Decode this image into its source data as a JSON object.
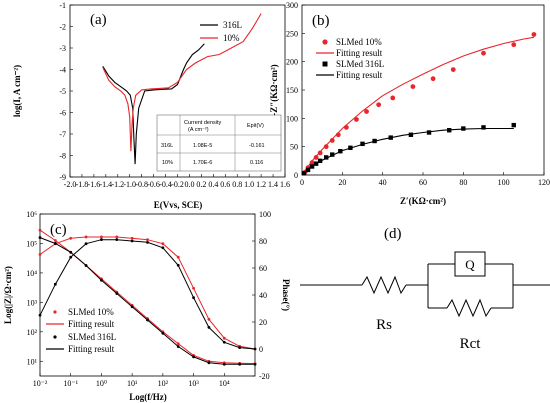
{
  "colors": {
    "sample_10": "#e8262b",
    "sample_316l": "#000000",
    "axis": "#000000"
  },
  "panels": {
    "a": {
      "label": "(a)"
    },
    "b": {
      "label": "(b)"
    },
    "c": {
      "label": "(c)"
    },
    "d": {
      "label": "(d)",
      "rs_label": "Rs",
      "rct_label": "Rct",
      "q_label": "Q"
    }
  },
  "chart_data": [
    {
      "id": "a",
      "type": "line",
      "xlabel": "E(Vvs, SCE)",
      "ylabel": "log(I, A cm⁻²)",
      "xlim": [
        -2.0,
        1.6
      ],
      "ylim": [
        -9,
        -1
      ],
      "xticks": [
        "-2.0",
        "-1.8",
        "-1.6",
        "-1.4",
        "-1.2",
        "-1.0",
        "-0.8",
        "-0.6",
        "-0.4",
        "-0.2",
        "0.0",
        "0.2",
        "0.4",
        "0.6",
        "0.8",
        "1.0",
        "1.2",
        "1.4",
        "1.6"
      ],
      "yticks": [
        "-9",
        "-8",
        "-7",
        "-6",
        "-5",
        "-4",
        "-3",
        "-2",
        "-1"
      ],
      "legend": [
        "316L",
        "10%"
      ],
      "series": [
        {
          "name": "316L",
          "x": [
            -1.45,
            -1.35,
            -1.25,
            -1.15,
            -1.05,
            -0.99,
            -0.95,
            -0.93,
            -0.91,
            -0.89,
            -0.85,
            -0.75,
            -0.6,
            -0.45,
            -0.3,
            -0.2,
            -0.1,
            -0.05,
            0.05,
            0.15,
            0.25
          ],
          "y": [
            -3.85,
            -4.3,
            -4.6,
            -4.8,
            -5.0,
            -5.2,
            -5.8,
            -7.2,
            -8.4,
            -7.0,
            -5.8,
            -5.0,
            -4.95,
            -4.92,
            -4.9,
            -4.7,
            -4.0,
            -3.7,
            -3.3,
            -3.1,
            -2.8
          ]
        },
        {
          "name": "10%",
          "x": [
            -1.45,
            -1.35,
            -1.25,
            -1.15,
            -1.08,
            -1.03,
            -1.0,
            -0.98,
            -0.96,
            -0.94,
            -0.9,
            -0.8,
            -0.65,
            -0.5,
            -0.35,
            -0.2,
            -0.05,
            0.1,
            0.3,
            0.5,
            0.7,
            0.9,
            1.05,
            1.2
          ],
          "y": [
            -3.9,
            -4.5,
            -4.8,
            -5.0,
            -5.2,
            -5.6,
            -6.2,
            -7.8,
            -6.5,
            -5.8,
            -5.2,
            -4.95,
            -4.9,
            -4.88,
            -4.85,
            -4.6,
            -4.0,
            -3.7,
            -3.4,
            -3.3,
            -3.0,
            -2.7,
            -2.1,
            -1.4
          ]
        }
      ],
      "table": {
        "headers": [
          "",
          "Current density\n(A cm⁻²)",
          "Epit(V)"
        ],
        "rows": [
          [
            "316L",
            "1.08E-5",
            "-0.161"
          ],
          [
            "10%",
            "1.70E-6",
            "0.116"
          ]
        ]
      }
    },
    {
      "id": "b",
      "type": "scatter",
      "xlabel": "Z′(KΩ·cm²)",
      "ylabel": "-Z″(KΩ·cm²)",
      "xlim": [
        0,
        120
      ],
      "ylim": [
        0,
        300
      ],
      "xticks": [
        "0",
        "20",
        "40",
        "60",
        "80",
        "100",
        "120"
      ],
      "yticks": [
        "0",
        "50",
        "100",
        "150",
        "200",
        "250",
        "300"
      ],
      "legend": [
        "SLMed 10%",
        "Fitting result",
        "SLMed 316L",
        "Fitting result"
      ],
      "series": [
        {
          "name": "SLMed 10%",
          "kind": "points",
          "x": [
            1.5,
            3,
            5,
            7,
            9,
            12,
            15,
            18,
            22,
            27,
            32,
            38,
            45,
            55,
            65,
            75,
            90,
            105,
            115
          ],
          "y": [
            5,
            13,
            22,
            31,
            39,
            50,
            61,
            71,
            84,
            98,
            112,
            124,
            136,
            156,
            170,
            186,
            215,
            230,
            248
          ]
        },
        {
          "name": "Fitting result",
          "kind": "line",
          "color": "sample_10",
          "x": [
            0,
            5,
            10,
            20,
            30,
            40,
            50,
            60,
            70,
            80,
            90,
            100,
            110,
            115
          ],
          "y": [
            0,
            25,
            45,
            82,
            113,
            140,
            160,
            178,
            195,
            210,
            222,
            232,
            240,
            243
          ]
        },
        {
          "name": "SLMed 316L",
          "kind": "points",
          "x": [
            1,
            3,
            5,
            7,
            9,
            12,
            15,
            19,
            24,
            30,
            36,
            44,
            54,
            63,
            73,
            80,
            90,
            105
          ],
          "y": [
            3,
            9,
            15,
            20,
            25,
            31,
            36,
            42,
            48,
            55,
            60,
            66,
            71,
            75,
            79,
            82,
            84,
            88
          ]
        },
        {
          "name": "Fitting result",
          "kind": "line",
          "color": "sample_316l",
          "x": [
            0,
            5,
            10,
            20,
            30,
            40,
            50,
            60,
            70,
            80,
            90,
            100,
            105
          ],
          "y": [
            0,
            16,
            26,
            43,
            54,
            63,
            70,
            75,
            79,
            81,
            82,
            82,
            82
          ]
        }
      ]
    },
    {
      "id": "c",
      "type": "line",
      "xlabel": "Log(f/Hz)",
      "ylabel": "Log(|Z|/Ω·cm²)",
      "y2label": "Phase(°)",
      "xticks": [
        "10⁻²",
        "10⁻¹",
        "10⁰",
        "10¹",
        "10²",
        "10³",
        "10⁴"
      ],
      "yticks": [
        "10¹",
        "10²",
        "10³",
        "10⁴",
        "10⁵",
        "10⁶"
      ],
      "y2ticks": [
        "-20",
        "0",
        "20",
        "40",
        "60",
        "80",
        "100"
      ],
      "xlim": [
        -2,
        5
      ],
      "ylim": [
        0.5,
        6
      ],
      "y2lim": [
        -20,
        100
      ],
      "legend": [
        "SLMed 10%",
        "Fitting result",
        "SLMed 316L",
        "Fitting result"
      ],
      "series": [
        {
          "name": "SLMed 10%",
          "kind": "modulus",
          "x": [
            -2,
            -1.5,
            -1,
            -0.5,
            0,
            0.5,
            1,
            1.5,
            2,
            2.5,
            3,
            3.5,
            4,
            4.5,
            5
          ],
          "y": [
            5.45,
            5.1,
            4.7,
            4.25,
            3.8,
            3.35,
            2.9,
            2.45,
            2.0,
            1.6,
            1.2,
            1.0,
            0.95,
            0.93,
            0.92
          ]
        },
        {
          "name": "SLMed 10%",
          "kind": "phase",
          "x": [
            -2,
            -1.5,
            -1,
            -0.5,
            0,
            0.5,
            1,
            1.5,
            2,
            2.5,
            3,
            3.5,
            4,
            4.5,
            5
          ],
          "y": [
            70,
            78,
            82,
            83,
            83,
            83,
            82,
            81,
            78,
            68,
            45,
            22,
            8,
            2,
            0
          ]
        },
        {
          "name": "SLMed 316L",
          "kind": "modulus",
          "x": [
            -2,
            -1.5,
            -1,
            -0.5,
            0,
            0.5,
            1,
            1.5,
            2,
            2.5,
            3,
            3.5,
            4,
            4.5,
            5
          ],
          "y": [
            5.2,
            5.0,
            4.7,
            4.25,
            3.75,
            3.3,
            2.85,
            2.4,
            1.95,
            1.5,
            1.15,
            0.95,
            0.9,
            0.9,
            0.9
          ]
        },
        {
          "name": "SLMed 316L",
          "kind": "phase",
          "x": [
            -2,
            -1.5,
            -1,
            -0.5,
            0,
            0.5,
            1,
            1.5,
            2,
            2.5,
            3,
            3.5,
            4,
            4.5,
            5
          ],
          "y": [
            25,
            48,
            68,
            78,
            81,
            81,
            80,
            79,
            75,
            62,
            38,
            16,
            5,
            1,
            0
          ]
        }
      ]
    }
  ]
}
